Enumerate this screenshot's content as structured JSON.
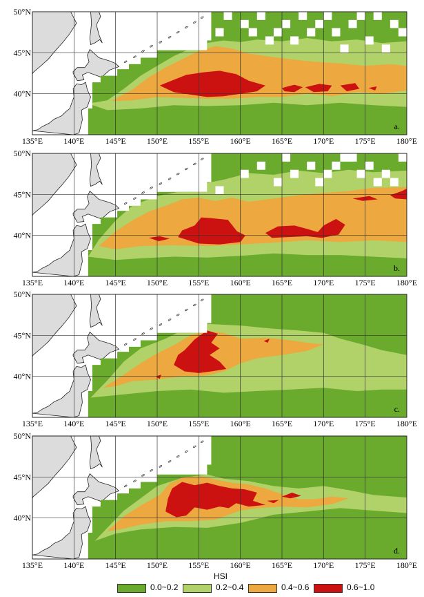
{
  "map": {
    "lon_labels": [
      "135°E",
      "140°E",
      "145°E",
      "150°E",
      "155°E",
      "160°E",
      "165°E",
      "170°E",
      "175°E",
      "180°E"
    ],
    "lat_labels": [
      "50°N",
      "45°N",
      "40°N"
    ],
    "lon_range": [
      135,
      180
    ],
    "lat_range": [
      35,
      50
    ],
    "panels": [
      {
        "label": "a."
      },
      {
        "label": "b."
      },
      {
        "label": "c."
      },
      {
        "label": "d."
      }
    ]
  },
  "legend": {
    "title": "HSI",
    "items": [
      {
        "label": "0.0~0.2",
        "color": "#6aaa2c"
      },
      {
        "label": "0.2~0.4",
        "color": "#b0d268"
      },
      {
        "label": "0.4~0.6",
        "color": "#eda83f"
      },
      {
        "label": "0.6~1.0",
        "color": "#cc1111"
      }
    ]
  },
  "colors": {
    "land": "#dcdcdc",
    "nodata": "#ffffff",
    "grid": "#333333"
  }
}
